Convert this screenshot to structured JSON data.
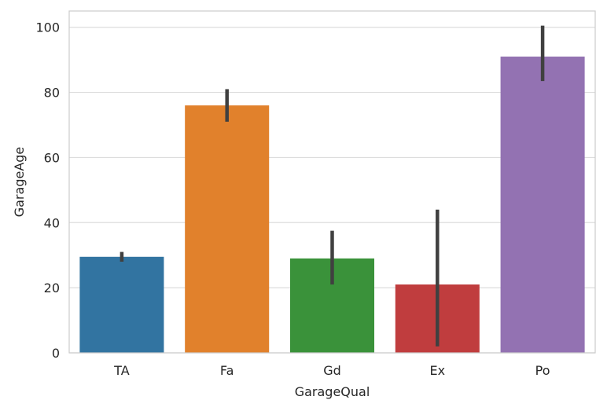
{
  "chart_data": {
    "type": "bar",
    "title": "",
    "xlabel": "GarageQual",
    "ylabel": "GarageAge",
    "categories": [
      "TA",
      "Fa",
      "Gd",
      "Ex",
      "Po"
    ],
    "values": [
      29.5,
      76.0,
      29.0,
      21.0,
      91.0
    ],
    "error_bars": [
      {
        "low": 28.0,
        "high": 31.0
      },
      {
        "low": 71.0,
        "high": 81.0
      },
      {
        "low": 21.0,
        "high": 37.5
      },
      {
        "low": 2.0,
        "high": 44.0
      },
      {
        "low": 83.5,
        "high": 100.5
      }
    ],
    "ylim": [
      0,
      105
    ],
    "yticks": [
      0,
      20,
      40,
      60,
      80,
      100
    ],
    "grid": "horizontal",
    "colors": {
      "bars": [
        "#3274a1",
        "#e1812c",
        "#3a923a",
        "#c03d3e",
        "#9372b2"
      ],
      "error_bar": "#404040",
      "grid": "#dddddd",
      "frame": "#cccccc"
    }
  }
}
